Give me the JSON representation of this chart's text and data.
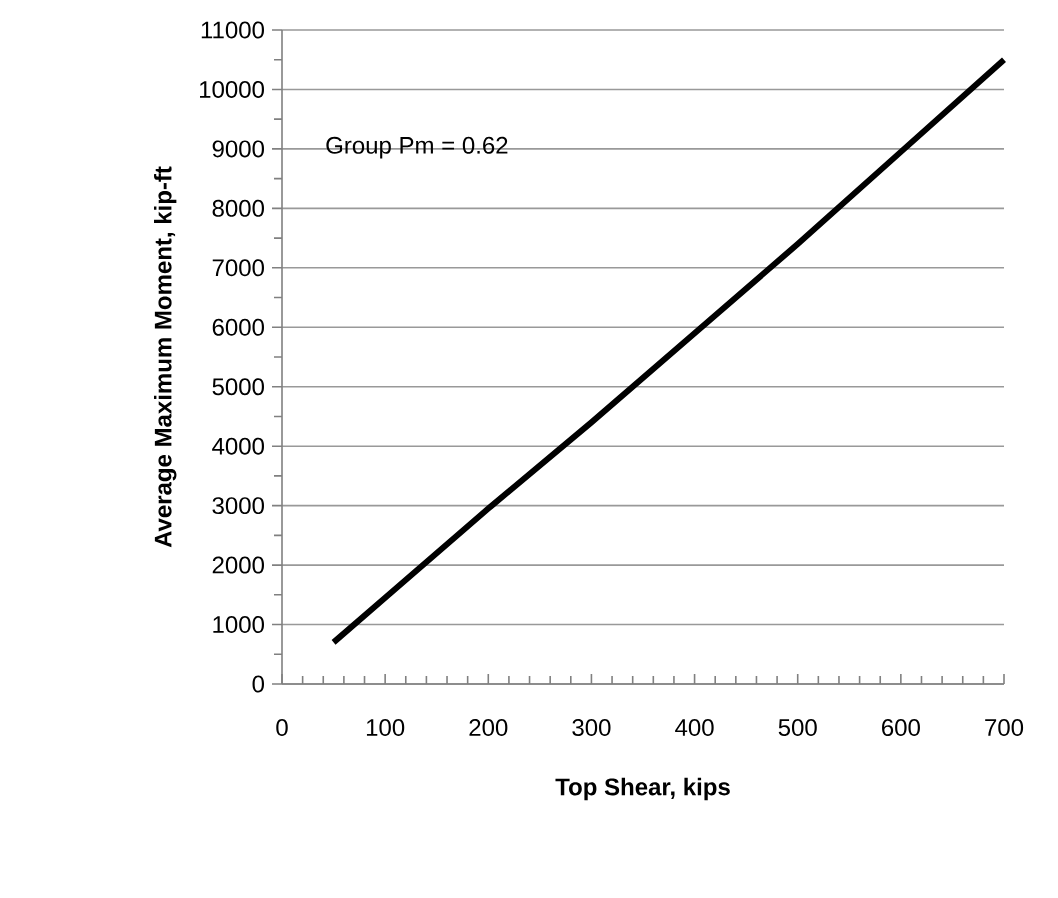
{
  "chart_data": {
    "type": "line",
    "xlabel": "Top Shear, kips",
    "ylabel": "Average Maximum Moment, kip-ft",
    "annotations": [
      "Group Pm = 0.62"
    ],
    "x": [
      50,
      100,
      200,
      300,
      400,
      500,
      600,
      700
    ],
    "series": [
      {
        "color": "#000000",
        "values": [
          700,
          1450,
          2950,
          4400,
          5900,
          7400,
          8950,
          10500
        ]
      }
    ],
    "xlim": [
      0,
      700
    ],
    "xticks": [
      0,
      100,
      200,
      300,
      400,
      500,
      600,
      700
    ],
    "ylim": [
      0,
      11000
    ],
    "yticks": [
      0,
      1000,
      2000,
      3000,
      4000,
      5000,
      6000,
      7000,
      8000,
      9000,
      10000,
      11000
    ],
    "grid": "y",
    "marker": "none",
    "line_style": "solid"
  }
}
